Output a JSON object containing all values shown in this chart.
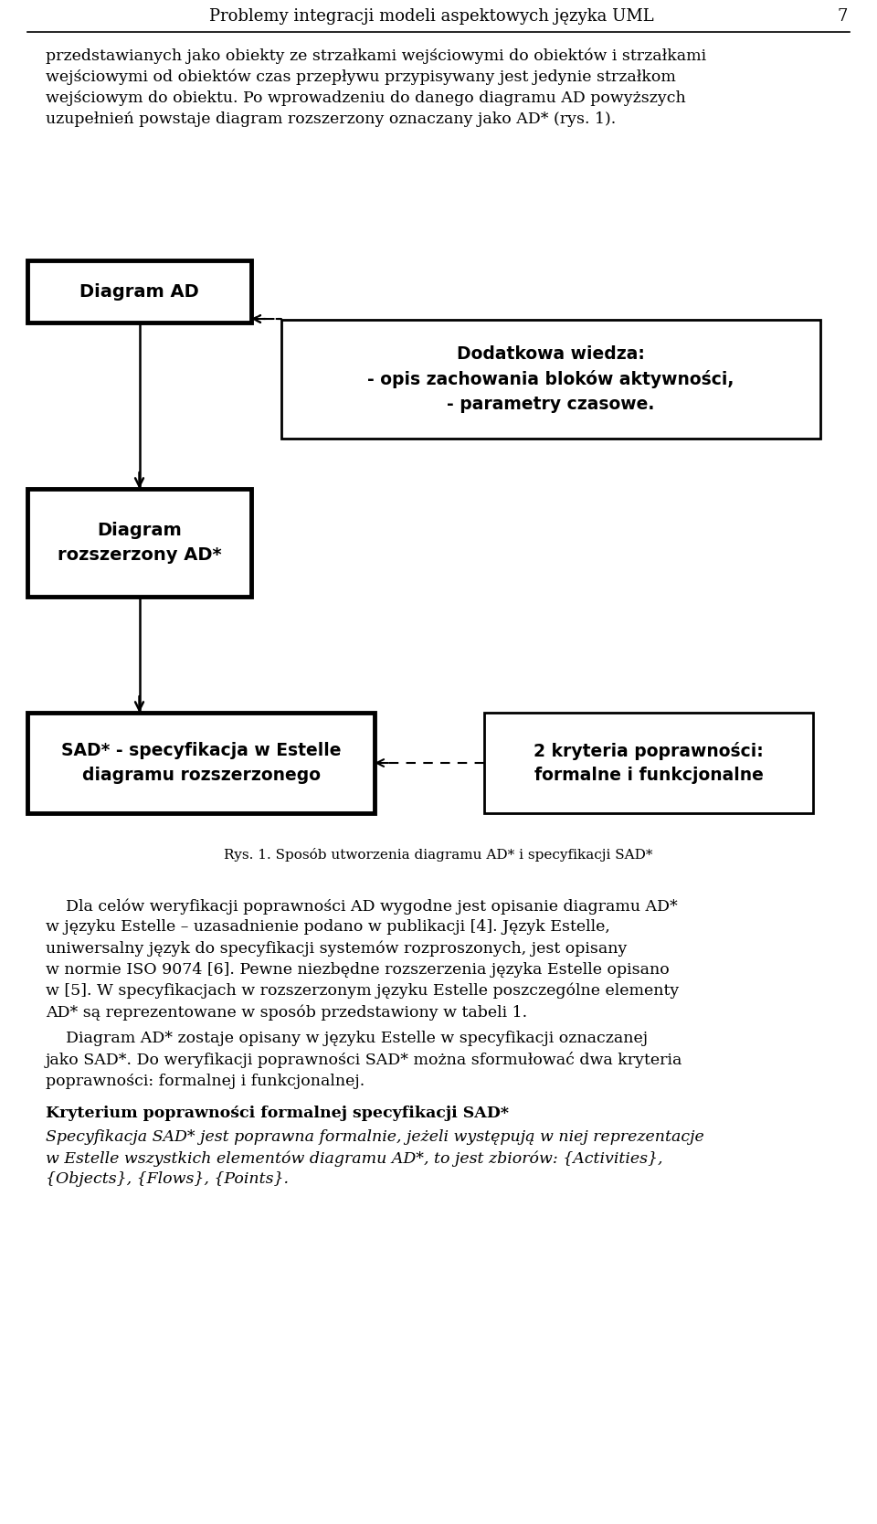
{
  "page_title": "Problemy integracji modeli aspektowych języka UML",
  "page_number": "7",
  "box1_text": "Diagram AD",
  "box2_text": "Dodatkowa wiedza:\n- opis zachowania bloków aktywności,\n- parametry czasowe.",
  "box3_text": "Diagram\nrozszerzony AD*",
  "box4_text": "SAD* - specyfikacja w Estelle\ndiagramu rozszerzonego",
  "box5_text": "2 kryteria poprawności:\nformalne i funkcjonalne",
  "caption": "Rys. 1. Sposób utworzenia diagramu AD* i specyfikacji SAD*",
  "para1_line1": "przedstawianych jako obiekty ze strzałkami wejściowymi do obiektów i strzałkami",
  "para1_line2": "wejściowymi od obiektów czas przepływu przypisywany jest jedynie strzałkom",
  "para1_line3": "wejściowym do obiektu. Po wprowadzeniu do danego diagramu AD powyższych",
  "para1_line4": "uzupełnień powstaje diagram rozszerzony oznaczany jako AD* (rys. 1).",
  "para2_line1": "    Dla celów weryfikacji poprawności AD wygodne jest opisanie diagramu AD*",
  "para2_line2": "w języku Estelle – uzasadnienie podano w publikacji [4]. Język Estelle,",
  "para2_line3": "uniwersalny język do specyfikacji systemów rozproszonych, jest opisany",
  "para2_line4": "w normie ISO 9074 [6]. Pewne niezbędne rozszerzenia języka Estelle opisano",
  "para2_line5": "w [5]. W specyfikacjach w rozszerzonym języku Estelle poszczególne elementy",
  "para2_line6": "AD* są reprezentowane w sposób przedstawiony w tabeli 1.",
  "para3_line1": "    Diagram AD* zostaje opisany w języku Estelle w specyfikacji oznaczanej",
  "para3_line2": "jako SAD*. Do weryfikacji poprawności SAD* można sformułować dwa kryteria",
  "para3_line3": "poprawności: formalnej i funkcjonalnej.",
  "para4_bold_header": "Kryterium poprawności formalnej specyfikacji SAD*",
  "para4_italic_line1": "Specyfikacja SAD* jest poprawna formalnie, jeżeli występują w niej reprezentacje",
  "para4_italic_line2": "w Estelle wszystkich elementów diagramu AD*, to jest zbiorów: {Activities},",
  "para4_italic_line3": "{Objects}, {Flows}, {Points}.",
  "bg_color": "#ffffff",
  "text_color": "#000000"
}
